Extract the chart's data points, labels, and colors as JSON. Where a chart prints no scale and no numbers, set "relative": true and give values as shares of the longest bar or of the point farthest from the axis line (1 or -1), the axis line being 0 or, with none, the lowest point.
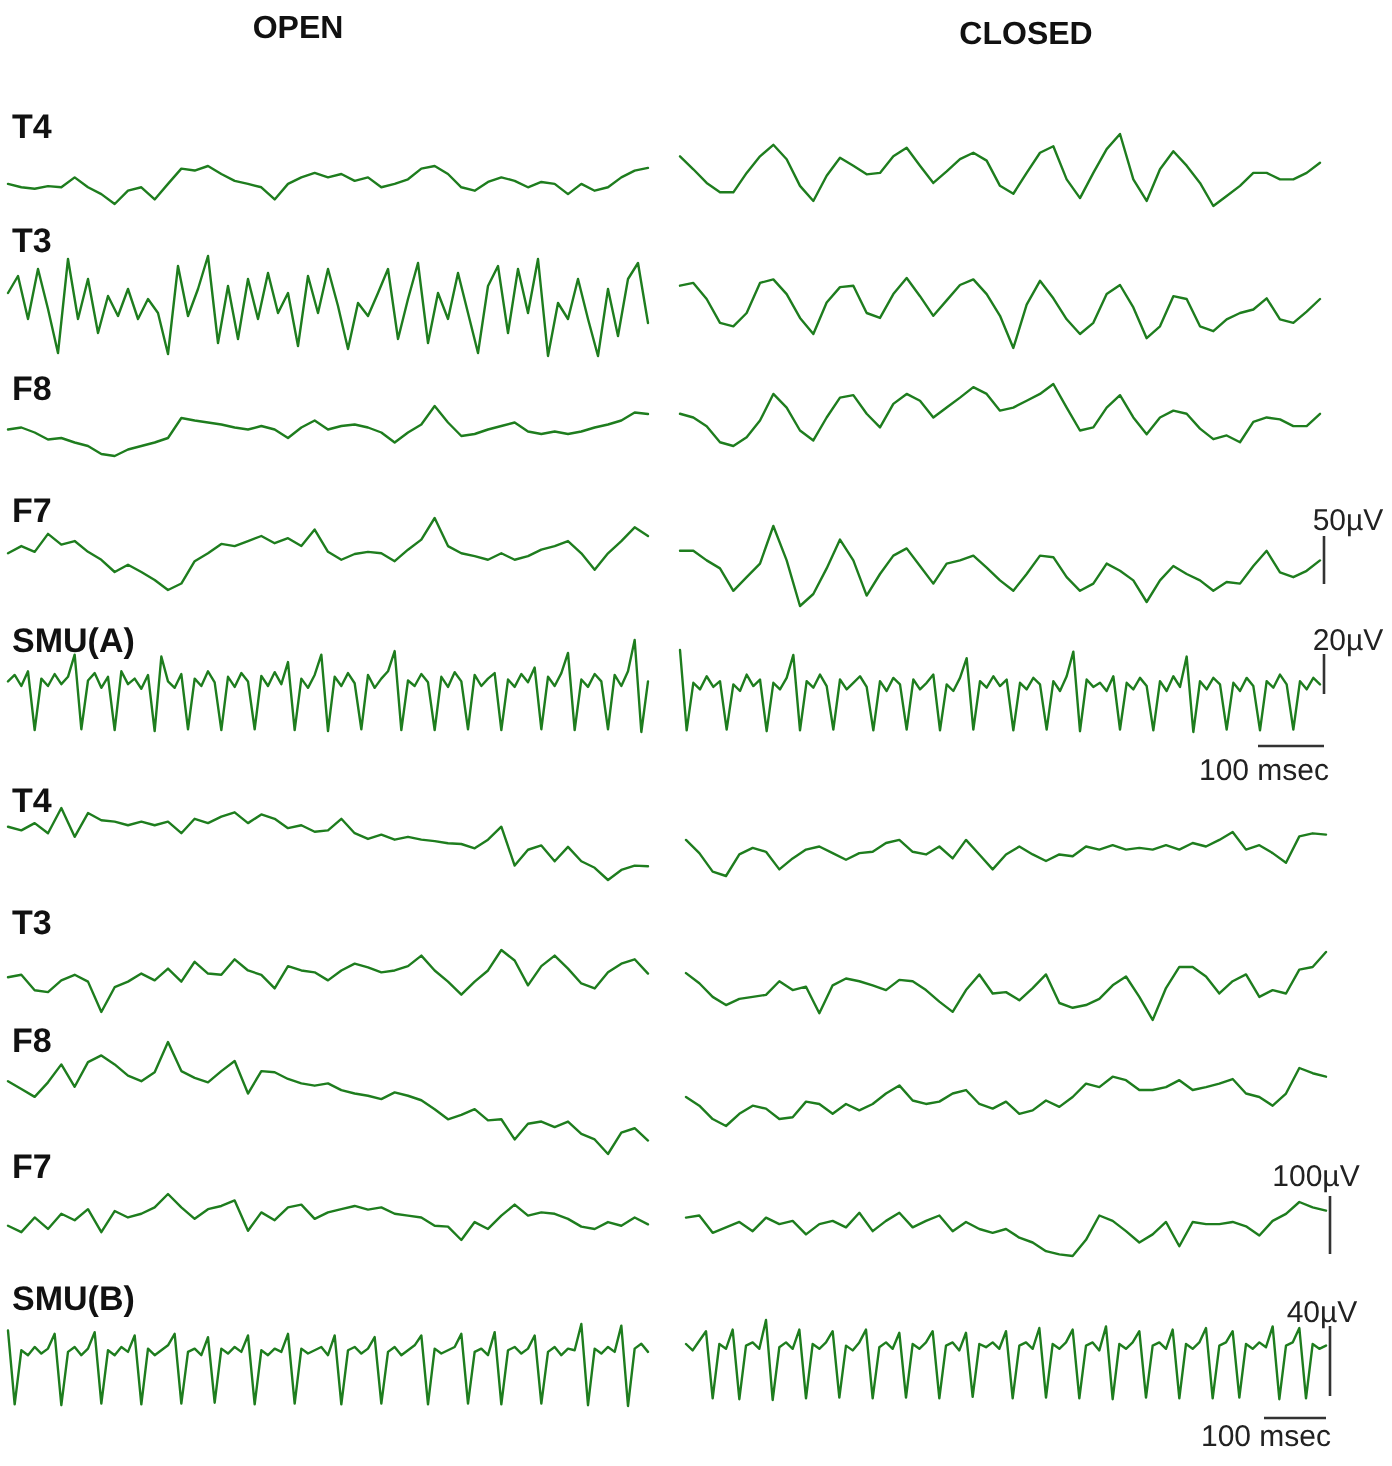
{
  "chart_data": [
    {
      "type": "line",
      "relative": true,
      "title": "OPEN",
      "ylabel": "T4",
      "color": "#1e7d1e",
      "categories": [
        null,
        null,
        null,
        null,
        null,
        null,
        null,
        null,
        null,
        null,
        null,
        null,
        null,
        null,
        null,
        null,
        null,
        null,
        null,
        null,
        null,
        null,
        null,
        null,
        null,
        null,
        null,
        null,
        null,
        null,
        null,
        null,
        null,
        null,
        null,
        null,
        null,
        null,
        null,
        null,
        null,
        null,
        null,
        null,
        null,
        null,
        null,
        null,
        null
      ],
      "values": [
        0.53,
        0.44,
        0.4,
        0.47,
        0.44,
        0.7,
        0.44,
        0.26,
        0,
        0.35,
        0.44,
        0.12,
        0.53,
        0.93,
        0.88,
        1.0,
        0.79,
        0.61,
        0.53,
        0.44,
        0.12,
        0.53,
        0.7,
        0.82,
        0.7,
        0.79,
        0.61,
        0.7,
        0.44,
        0.53,
        0.65,
        0.93,
        1.0,
        0.79,
        0.44,
        0.35,
        0.58,
        0.7,
        0.61,
        0.44,
        0.58,
        0.53,
        0.26,
        0.53,
        0.35,
        0.44,
        0.7,
        0.88,
        0.95
      ]
    },
    {
      "type": "line",
      "relative": true,
      "title": "CLOSED",
      "color": "#1e7d1e",
      "categories": [
        null,
        null,
        null,
        null,
        null,
        null,
        null,
        null,
        null,
        null,
        null,
        null,
        null,
        null,
        null,
        null,
        null,
        null,
        null,
        null,
        null,
        null,
        null,
        null,
        null,
        null,
        null,
        null,
        null,
        null,
        null,
        null,
        null,
        null,
        null,
        null,
        null,
        null,
        null,
        null,
        null,
        null,
        null,
        null,
        null,
        null,
        null,
        null,
        null
      ],
      "values": [
        0.69,
        0.51,
        0.32,
        0.19,
        0.19,
        0.46,
        0.69,
        0.85,
        0.65,
        0.28,
        0.07,
        0.42,
        0.67,
        0.56,
        0.44,
        0.46,
        0.69,
        0.81,
        0.56,
        0.32,
        0.48,
        0.65,
        0.74,
        0.63,
        0.28,
        0.17,
        0.46,
        0.74,
        0.83,
        0.37,
        0.11,
        0.46,
        0.79,
        1.0,
        0.37,
        0.07,
        0.51,
        0.76,
        0.56,
        0.32,
        0,
        0.14,
        0.28,
        0.46,
        0.46,
        0.37,
        0.37,
        0.46,
        0.6
      ]
    },
    {
      "type": "line",
      "relative": true,
      "ylabel": "T3",
      "color": "#1e7d1e",
      "categories": [
        null,
        null,
        null,
        null,
        null,
        null,
        null,
        null,
        null,
        null,
        null,
        null,
        null,
        null,
        null,
        null,
        null,
        null,
        null,
        null,
        null,
        null,
        null,
        null,
        null,
        null,
        null,
        null,
        null,
        null,
        null,
        null,
        null,
        null,
        null,
        null,
        null,
        null,
        null,
        null,
        null,
        null,
        null,
        null,
        null,
        null,
        null,
        null,
        null,
        null,
        null,
        null,
        null,
        null,
        null,
        null,
        null,
        null,
        null,
        null,
        null,
        null,
        null,
        null,
        null
      ],
      "values": [
        0.63,
        0.8,
        0.37,
        0.87,
        0.47,
        0.03,
        0.97,
        0.37,
        0.77,
        0.23,
        0.6,
        0.4,
        0.67,
        0.37,
        0.57,
        0.43,
        0.02,
        0.9,
        0.4,
        0.67,
        1.0,
        0.13,
        0.7,
        0.17,
        0.77,
        0.37,
        0.83,
        0.43,
        0.63,
        0.1,
        0.8,
        0.43,
        0.87,
        0.5,
        0.07,
        0.53,
        0.4,
        0.63,
        0.87,
        0.17,
        0.57,
        0.93,
        0.13,
        0.63,
        0.37,
        0.83,
        0.43,
        0.03,
        0.7,
        0.9,
        0.23,
        0.87,
        0.43,
        0.97,
        0,
        0.53,
        0.37,
        0.77,
        0.37,
        0,
        0.67,
        0.2,
        0.77,
        0.93,
        0.33
      ]
    },
    {
      "type": "line",
      "relative": true,
      "color": "#1e7d1e",
      "categories": [
        null,
        null,
        null,
        null,
        null,
        null,
        null,
        null,
        null,
        null,
        null,
        null,
        null,
        null,
        null,
        null,
        null,
        null,
        null,
        null,
        null,
        null,
        null,
        null,
        null,
        null,
        null,
        null,
        null,
        null,
        null,
        null,
        null,
        null,
        null,
        null,
        null,
        null,
        null,
        null,
        null,
        null,
        null,
        null,
        null,
        null,
        null,
        null,
        null
      ],
      "values": [
        0.89,
        0.93,
        0.7,
        0.36,
        0.31,
        0.5,
        0.93,
        0.98,
        0.77,
        0.43,
        0.2,
        0.65,
        0.87,
        0.89,
        0.5,
        0.43,
        0.77,
        1.0,
        0.74,
        0.46,
        0.68,
        0.9,
        0.98,
        0.77,
        0.46,
        0,
        0.62,
        0.96,
        0.71,
        0.41,
        0.2,
        0.36,
        0.77,
        0.9,
        0.58,
        0.14,
        0.31,
        0.74,
        0.7,
        0.31,
        0.24,
        0.41,
        0.5,
        0.55,
        0.71,
        0.41,
        0.36,
        0.52,
        0.7
      ]
    },
    {
      "type": "line",
      "relative": true,
      "ylabel": "F8",
      "color": "#1e7d1e",
      "categories": [
        null,
        null,
        null,
        null,
        null,
        null,
        null,
        null,
        null,
        null,
        null,
        null,
        null,
        null,
        null,
        null,
        null,
        null,
        null,
        null,
        null,
        null,
        null,
        null,
        null,
        null,
        null,
        null,
        null,
        null,
        null,
        null,
        null,
        null,
        null,
        null,
        null,
        null,
        null,
        null,
        null,
        null,
        null,
        null,
        null,
        null,
        null,
        null,
        null
      ],
      "values": [
        0.53,
        0.57,
        0.47,
        0.33,
        0.36,
        0.27,
        0.2,
        0.04,
        0,
        0.13,
        0.2,
        0.27,
        0.36,
        0.76,
        0.71,
        0.67,
        0.63,
        0.57,
        0.53,
        0.6,
        0.53,
        0.36,
        0.57,
        0.71,
        0.53,
        0.6,
        0.63,
        0.57,
        0.47,
        0.27,
        0.47,
        0.63,
        1.0,
        0.67,
        0.4,
        0.44,
        0.53,
        0.6,
        0.67,
        0.49,
        0.44,
        0.49,
        0.44,
        0.49,
        0.57,
        0.63,
        0.71,
        0.87,
        0.84
      ]
    },
    {
      "type": "line",
      "relative": true,
      "color": "#1e7d1e",
      "categories": [
        null,
        null,
        null,
        null,
        null,
        null,
        null,
        null,
        null,
        null,
        null,
        null,
        null,
        null,
        null,
        null,
        null,
        null,
        null,
        null,
        null,
        null,
        null,
        null,
        null,
        null,
        null,
        null,
        null,
        null,
        null,
        null,
        null,
        null,
        null,
        null,
        null,
        null,
        null,
        null,
        null,
        null,
        null,
        null,
        null,
        null,
        null,
        null,
        null
      ],
      "values": [
        0.52,
        0.46,
        0.32,
        0.06,
        0,
        0.14,
        0.41,
        0.84,
        0.62,
        0.25,
        0.09,
        0.46,
        0.78,
        0.82,
        0.52,
        0.3,
        0.68,
        0.84,
        0.73,
        0.46,
        0.62,
        0.78,
        0.95,
        0.84,
        0.57,
        0.62,
        0.73,
        0.84,
        1.0,
        0.62,
        0.25,
        0.3,
        0.62,
        0.82,
        0.46,
        0.19,
        0.46,
        0.57,
        0.52,
        0.28,
        0.11,
        0.17,
        0.06,
        0.39,
        0.46,
        0.43,
        0.32,
        0.32,
        0.52
      ]
    },
    {
      "type": "line",
      "relative": true,
      "ylabel": "F7",
      "color": "#1e7d1e",
      "categories": [
        null,
        null,
        null,
        null,
        null,
        null,
        null,
        null,
        null,
        null,
        null,
        null,
        null,
        null,
        null,
        null,
        null,
        null,
        null,
        null,
        null,
        null,
        null,
        null,
        null,
        null,
        null,
        null,
        null,
        null,
        null,
        null,
        null,
        null,
        null,
        null,
        null,
        null,
        null,
        null,
        null,
        null,
        null,
        null,
        null,
        null,
        null,
        null,
        null
      ],
      "values": [
        0.51,
        0.61,
        0.53,
        0.78,
        0.63,
        0.68,
        0.53,
        0.42,
        0.25,
        0.35,
        0.25,
        0.14,
        0,
        0.09,
        0.4,
        0.51,
        0.64,
        0.61,
        0.68,
        0.75,
        0.65,
        0.72,
        0.61,
        0.84,
        0.53,
        0.42,
        0.5,
        0.53,
        0.51,
        0.4,
        0.56,
        0.7,
        1.0,
        0.61,
        0.51,
        0.47,
        0.42,
        0.51,
        0.42,
        0.47,
        0.56,
        0.61,
        0.68,
        0.51,
        0.28,
        0.51,
        0.68,
        0.87,
        0.75
      ]
    },
    {
      "type": "line",
      "relative": true,
      "color": "#1e7d1e",
      "annotations": [
        "50µV"
      ],
      "categories": [
        null,
        null,
        null,
        null,
        null,
        null,
        null,
        null,
        null,
        null,
        null,
        null,
        null,
        null,
        null,
        null,
        null,
        null,
        null,
        null,
        null,
        null,
        null,
        null,
        null,
        null,
        null,
        null,
        null,
        null,
        null,
        null,
        null,
        null,
        null,
        null,
        null,
        null,
        null,
        null,
        null,
        null,
        null,
        null,
        null,
        null,
        null,
        null,
        null
      ],
      "values": [
        0.69,
        0.69,
        0.57,
        0.47,
        0.19,
        0.36,
        0.53,
        1.0,
        0.57,
        0,
        0.15,
        0.47,
        0.83,
        0.57,
        0.13,
        0.4,
        0.63,
        0.72,
        0.5,
        0.28,
        0.53,
        0.57,
        0.63,
        0.48,
        0.32,
        0.19,
        0.4,
        0.63,
        0.61,
        0.36,
        0.19,
        0.28,
        0.53,
        0.44,
        0.32,
        0.05,
        0.32,
        0.5,
        0.4,
        0.32,
        0.19,
        0.3,
        0.28,
        0.5,
        0.69,
        0.42,
        0.36,
        0.44,
        0.57
      ]
    },
    {
      "type": "line",
      "relative": true,
      "ylabel": "SMU(A)",
      "color": "#1e7d1e",
      "categories": [
        null,
        null,
        null,
        null,
        null,
        null,
        null,
        null,
        null,
        null,
        null,
        null,
        null,
        null,
        null,
        null,
        null,
        null,
        null,
        null,
        null,
        null,
        null,
        null,
        null,
        null,
        null,
        null,
        null,
        null,
        null,
        null,
        null,
        null,
        null,
        null,
        null,
        null,
        null,
        null,
        null,
        null,
        null,
        null,
        null,
        null,
        null,
        null,
        null,
        null,
        null,
        null,
        null,
        null,
        null,
        null,
        null,
        null,
        null,
        null,
        null,
        null,
        null,
        null,
        null,
        null,
        null,
        null,
        null,
        null,
        null,
        null,
        null,
        null,
        null,
        null,
        null,
        null,
        null,
        null,
        null,
        null,
        null,
        null,
        null,
        null,
        null,
        null,
        null,
        null,
        null,
        null,
        null,
        null,
        null,
        null,
        null
      ],
      "values": [
        0.55,
        0.62,
        0.5,
        0.66,
        0.02,
        0.58,
        0.5,
        0.63,
        0.52,
        0.6,
        0.84,
        0.03,
        0.56,
        0.64,
        0.48,
        0.6,
        0.02,
        0.66,
        0.52,
        0.58,
        0.47,
        0.62,
        0.01,
        0.82,
        0.55,
        0.48,
        0.63,
        0.03,
        0.58,
        0.5,
        0.66,
        0.54,
        0.02,
        0.6,
        0.49,
        0.64,
        0.55,
        0.03,
        0.61,
        0.5,
        0.65,
        0.52,
        0.76,
        0.02,
        0.58,
        0.48,
        0.62,
        0.84,
        0.01,
        0.6,
        0.5,
        0.64,
        0.53,
        0.03,
        0.62,
        0.48,
        0.58,
        0.66,
        0.88,
        0.02,
        0.56,
        0.5,
        0.63,
        0.54,
        0.02,
        0.6,
        0.49,
        0.65,
        0.55,
        0.03,
        0.62,
        0.5,
        0.58,
        0.64,
        0.02,
        0.57,
        0.49,
        0.63,
        0.54,
        0.7,
        0.03,
        0.6,
        0.5,
        0.64,
        0.86,
        0.02,
        0.57,
        0.49,
        0.63,
        0.55,
        0.03,
        0.62,
        0.5,
        0.66,
        1.0,
        0,
        0.55
      ]
    },
    {
      "type": "line",
      "relative": true,
      "color": "#1e7d1e",
      "annotations": [
        "20µV",
        "100 msec"
      ],
      "categories": [
        null,
        null,
        null,
        null,
        null,
        null,
        null,
        null,
        null,
        null,
        null,
        null,
        null,
        null,
        null,
        null,
        null,
        null,
        null,
        null,
        null,
        null,
        null,
        null,
        null,
        null,
        null,
        null,
        null,
        null,
        null,
        null,
        null,
        null,
        null,
        null,
        null,
        null,
        null,
        null,
        null,
        null,
        null,
        null,
        null,
        null,
        null,
        null,
        null,
        null,
        null,
        null,
        null,
        null,
        null,
        null,
        null,
        null,
        null,
        null,
        null,
        null,
        null,
        null,
        null,
        null,
        null,
        null,
        null,
        null,
        null,
        null,
        null,
        null,
        null,
        null,
        null,
        null,
        null,
        null,
        null,
        null,
        null,
        null,
        null,
        null,
        null,
        null,
        null,
        null,
        null,
        null,
        null,
        null,
        null,
        null,
        null
      ],
      "values": [
        1.0,
        0.02,
        0.6,
        0.52,
        0.68,
        0.55,
        0.62,
        0.03,
        0.58,
        0.5,
        0.7,
        0.56,
        0.64,
        0.01,
        0.6,
        0.52,
        0.66,
        0.94,
        0.02,
        0.62,
        0.54,
        0.7,
        0.56,
        0.03,
        0.64,
        0.52,
        0.6,
        0.68,
        0.55,
        0.02,
        0.62,
        0.5,
        0.66,
        0.58,
        0.03,
        0.64,
        0.52,
        0.6,
        0.7,
        0.02,
        0.58,
        0.5,
        0.66,
        0.9,
        0.03,
        0.62,
        0.54,
        0.68,
        0.56,
        0.64,
        0.02,
        0.6,
        0.52,
        0.66,
        0.58,
        0.03,
        0.62,
        0.5,
        0.68,
        0.98,
        0.01,
        0.64,
        0.55,
        0.6,
        0.5,
        0.68,
        0.03,
        0.6,
        0.52,
        0.66,
        0.56,
        0.02,
        0.62,
        0.5,
        0.68,
        0.55,
        0.92,
        0,
        0.62,
        0.52,
        0.66,
        0.58,
        0.03,
        0.6,
        0.5,
        0.66,
        0.56,
        0.02,
        0.62,
        0.54,
        0.7,
        0.58,
        0.03,
        0.62,
        0.52,
        0.66,
        0.58
      ]
    },
    {
      "type": "line",
      "relative": true,
      "ylabel": "T4",
      "color": "#1e7d1e",
      "categories": [
        null,
        null,
        null,
        null,
        null,
        null,
        null,
        null,
        null,
        null,
        null,
        null,
        null,
        null,
        null,
        null,
        null,
        null,
        null,
        null,
        null,
        null,
        null,
        null,
        null,
        null,
        null,
        null,
        null,
        null,
        null,
        null,
        null,
        null,
        null,
        null,
        null,
        null,
        null,
        null,
        null,
        null,
        null,
        null,
        null,
        null,
        null,
        null,
        null
      ],
      "values": [
        0.74,
        0.69,
        0.79,
        0.65,
        1.0,
        0.6,
        0.93,
        0.83,
        0.81,
        0.76,
        0.81,
        0.76,
        0.81,
        0.65,
        0.85,
        0.79,
        0.88,
        0.94,
        0.79,
        0.91,
        0.85,
        0.72,
        0.76,
        0.67,
        0.69,
        0.85,
        0.65,
        0.57,
        0.63,
        0.56,
        0.6,
        0.56,
        0.54,
        0.51,
        0.5,
        0.44,
        0.56,
        0.74,
        0.2,
        0.42,
        0.48,
        0.26,
        0.46,
        0.26,
        0.17,
        0,
        0.14,
        0.2,
        0.19
      ]
    },
    {
      "type": "line",
      "relative": true,
      "color": "#1e7d1e",
      "categories": [
        null,
        null,
        null,
        null,
        null,
        null,
        null,
        null,
        null,
        null,
        null,
        null,
        null,
        null,
        null,
        null,
        null,
        null,
        null,
        null,
        null,
        null,
        null,
        null,
        null,
        null,
        null,
        null,
        null,
        null,
        null,
        null,
        null,
        null,
        null,
        null,
        null,
        null,
        null,
        null,
        null,
        null,
        null,
        null,
        null,
        null,
        null,
        null,
        null
      ],
      "values": [
        0.82,
        0.52,
        0.1,
        0,
        0.49,
        0.64,
        0.55,
        0.15,
        0.4,
        0.6,
        0.67,
        0.52,
        0.37,
        0.52,
        0.55,
        0.75,
        0.82,
        0.55,
        0.49,
        0.67,
        0.4,
        0.82,
        0.49,
        0.15,
        0.49,
        0.67,
        0.49,
        0.34,
        0.49,
        0.45,
        0.67,
        0.6,
        0.7,
        0.6,
        0.64,
        0.6,
        0.7,
        0.6,
        0.75,
        0.67,
        0.82,
        1.0,
        0.6,
        0.7,
        0.52,
        0.3,
        0.9,
        0.97,
        0.94
      ]
    },
    {
      "type": "line",
      "relative": true,
      "ylabel": "T3",
      "color": "#1e7d1e",
      "categories": [
        null,
        null,
        null,
        null,
        null,
        null,
        null,
        null,
        null,
        null,
        null,
        null,
        null,
        null,
        null,
        null,
        null,
        null,
        null,
        null,
        null,
        null,
        null,
        null,
        null,
        null,
        null,
        null,
        null,
        null,
        null,
        null,
        null,
        null,
        null,
        null,
        null,
        null,
        null,
        null,
        null,
        null,
        null,
        null,
        null,
        null,
        null,
        null,
        null
      ],
      "values": [
        0.56,
        0.6,
        0.35,
        0.32,
        0.51,
        0.6,
        0.49,
        0,
        0.4,
        0.49,
        0.62,
        0.51,
        0.7,
        0.49,
        0.81,
        0.62,
        0.6,
        0.85,
        0.67,
        0.6,
        0.38,
        0.74,
        0.67,
        0.64,
        0.51,
        0.67,
        0.78,
        0.72,
        0.64,
        0.67,
        0.74,
        0.91,
        0.67,
        0.49,
        0.28,
        0.49,
        0.67,
        1.0,
        0.83,
        0.43,
        0.74,
        0.91,
        0.7,
        0.46,
        0.38,
        0.64,
        0.78,
        0.85,
        0.62
      ]
    },
    {
      "type": "line",
      "relative": true,
      "color": "#1e7d1e",
      "categories": [
        null,
        null,
        null,
        null,
        null,
        null,
        null,
        null,
        null,
        null,
        null,
        null,
        null,
        null,
        null,
        null,
        null,
        null,
        null,
        null,
        null,
        null,
        null,
        null,
        null,
        null,
        null,
        null,
        null,
        null,
        null,
        null,
        null,
        null,
        null,
        null,
        null,
        null,
        null,
        null,
        null,
        null,
        null,
        null,
        null,
        null,
        null,
        null,
        null
      ],
      "values": [
        0.69,
        0.54,
        0.34,
        0.22,
        0.31,
        0.34,
        0.37,
        0.57,
        0.44,
        0.49,
        0.1,
        0.51,
        0.61,
        0.57,
        0.51,
        0.44,
        0.59,
        0.57,
        0.44,
        0.27,
        0.12,
        0.44,
        0.67,
        0.39,
        0.41,
        0.29,
        0.47,
        0.67,
        0.25,
        0.18,
        0.22,
        0.31,
        0.51,
        0.64,
        0.34,
        0,
        0.47,
        0.78,
        0.78,
        0.64,
        0.39,
        0.57,
        0.67,
        0.34,
        0.44,
        0.39,
        0.74,
        0.78,
        1.0
      ]
    },
    {
      "type": "line",
      "relative": true,
      "ylabel": "F8",
      "color": "#1e7d1e",
      "categories": [
        null,
        null,
        null,
        null,
        null,
        null,
        null,
        null,
        null,
        null,
        null,
        null,
        null,
        null,
        null,
        null,
        null,
        null,
        null,
        null,
        null,
        null,
        null,
        null,
        null,
        null,
        null,
        null,
        null,
        null,
        null,
        null,
        null,
        null,
        null,
        null,
        null,
        null,
        null,
        null,
        null,
        null,
        null,
        null,
        null,
        null,
        null,
        null,
        null
      ],
      "values": [
        0.65,
        0.58,
        0.51,
        0.64,
        0.8,
        0.6,
        0.82,
        0.88,
        0.8,
        0.7,
        0.65,
        0.73,
        1.0,
        0.74,
        0.68,
        0.64,
        0.74,
        0.83,
        0.54,
        0.74,
        0.73,
        0.67,
        0.63,
        0.61,
        0.63,
        0.57,
        0.54,
        0.52,
        0.49,
        0.55,
        0.52,
        0.48,
        0.4,
        0.31,
        0.35,
        0.4,
        0.3,
        0.31,
        0.13,
        0.27,
        0.29,
        0.24,
        0.29,
        0.18,
        0.13,
        0,
        0.19,
        0.23,
        0.12
      ]
    },
    {
      "type": "line",
      "relative": true,
      "color": "#1e7d1e",
      "categories": [
        null,
        null,
        null,
        null,
        null,
        null,
        null,
        null,
        null,
        null,
        null,
        null,
        null,
        null,
        null,
        null,
        null,
        null,
        null,
        null,
        null,
        null,
        null,
        null,
        null,
        null,
        null,
        null,
        null,
        null,
        null,
        null,
        null,
        null,
        null,
        null,
        null,
        null,
        null,
        null,
        null,
        null,
        null,
        null,
        null,
        null,
        null,
        null,
        null
      ],
      "values": [
        0.5,
        0.35,
        0.12,
        0,
        0.21,
        0.35,
        0.3,
        0.12,
        0.15,
        0.42,
        0.38,
        0.21,
        0.38,
        0.27,
        0.38,
        0.56,
        0.7,
        0.44,
        0.38,
        0.42,
        0.56,
        0.62,
        0.38,
        0.3,
        0.42,
        0.21,
        0.27,
        0.44,
        0.33,
        0.5,
        0.73,
        0.67,
        0.85,
        0.79,
        0.62,
        0.62,
        0.67,
        0.79,
        0.62,
        0.67,
        0.73,
        0.81,
        0.56,
        0.5,
        0.35,
        0.56,
        1.0,
        0.91,
        0.85
      ]
    },
    {
      "type": "line",
      "relative": true,
      "ylabel": "F7",
      "color": "#1e7d1e",
      "categories": [
        null,
        null,
        null,
        null,
        null,
        null,
        null,
        null,
        null,
        null,
        null,
        null,
        null,
        null,
        null,
        null,
        null,
        null,
        null,
        null,
        null,
        null,
        null,
        null,
        null,
        null,
        null,
        null,
        null,
        null,
        null,
        null,
        null,
        null,
        null,
        null,
        null,
        null,
        null,
        null,
        null,
        null,
        null,
        null,
        null,
        null,
        null,
        null,
        null
      ],
      "values": [
        0.31,
        0.17,
        0.49,
        0.24,
        0.57,
        0.43,
        0.67,
        0.17,
        0.63,
        0.49,
        0.57,
        0.71,
        1.0,
        0.71,
        0.46,
        0.67,
        0.74,
        0.86,
        0.2,
        0.6,
        0.43,
        0.71,
        0.77,
        0.46,
        0.6,
        0.67,
        0.74,
        0.66,
        0.71,
        0.57,
        0.53,
        0.49,
        0.31,
        0.29,
        0,
        0.39,
        0.24,
        0.53,
        0.77,
        0.53,
        0.6,
        0.57,
        0.46,
        0.29,
        0.24,
        0.39,
        0.31,
        0.49,
        0.34
      ]
    },
    {
      "type": "line",
      "relative": true,
      "color": "#1e7d1e",
      "annotations": [
        "100µV"
      ],
      "categories": [
        null,
        null,
        null,
        null,
        null,
        null,
        null,
        null,
        null,
        null,
        null,
        null,
        null,
        null,
        null,
        null,
        null,
        null,
        null,
        null,
        null,
        null,
        null,
        null,
        null,
        null,
        null,
        null,
        null,
        null,
        null,
        null,
        null,
        null,
        null,
        null,
        null,
        null,
        null,
        null,
        null,
        null,
        null,
        null,
        null,
        null,
        null,
        null,
        null
      ],
      "values": [
        0.71,
        0.75,
        0.43,
        0.53,
        0.63,
        0.46,
        0.71,
        0.59,
        0.65,
        0.4,
        0.59,
        0.65,
        0.53,
        0.8,
        0.46,
        0.65,
        0.8,
        0.53,
        0.65,
        0.75,
        0.46,
        0.63,
        0.5,
        0.43,
        0.5,
        0.34,
        0.25,
        0.09,
        0.03,
        0,
        0.3,
        0.75,
        0.65,
        0.46,
        0.25,
        0.4,
        0.63,
        0.18,
        0.63,
        0.59,
        0.59,
        0.63,
        0.55,
        0.38,
        0.65,
        0.78,
        1.0,
        0.9,
        0.84
      ]
    },
    {
      "type": "line",
      "relative": true,
      "ylabel": "SMU(B)",
      "color": "#1e7d1e",
      "categories": [
        null,
        null,
        null,
        null,
        null,
        null,
        null,
        null,
        null,
        null,
        null,
        null,
        null,
        null,
        null,
        null,
        null,
        null,
        null,
        null,
        null,
        null,
        null,
        null,
        null,
        null,
        null,
        null,
        null,
        null,
        null,
        null,
        null,
        null,
        null,
        null,
        null,
        null,
        null,
        null,
        null,
        null,
        null,
        null,
        null,
        null,
        null,
        null,
        null,
        null,
        null,
        null,
        null,
        null,
        null,
        null,
        null,
        null,
        null,
        null,
        null,
        null,
        null,
        null,
        null,
        null,
        null,
        null,
        null,
        null,
        null,
        null,
        null,
        null,
        null,
        null,
        null,
        null,
        null,
        null,
        null,
        null,
        null,
        null,
        null,
        null,
        null,
        null,
        null,
        null,
        null,
        null,
        null,
        null,
        null,
        null,
        null
      ],
      "values": [
        0.92,
        0.02,
        0.68,
        0.62,
        0.72,
        0.64,
        0.7,
        0.88,
        0.01,
        0.66,
        0.72,
        0.62,
        0.7,
        0.9,
        0.03,
        0.68,
        0.62,
        0.72,
        0.66,
        0.86,
        0.02,
        0.7,
        0.62,
        0.68,
        0.74,
        0.88,
        0.03,
        0.66,
        0.7,
        0.62,
        0.84,
        0.04,
        0.7,
        0.64,
        0.72,
        0.66,
        0.86,
        0.02,
        0.68,
        0.62,
        0.7,
        0.66,
        0.88,
        0.03,
        0.7,
        0.64,
        0.68,
        0.72,
        0.62,
        0.86,
        0.02,
        0.68,
        0.72,
        0.64,
        0.7,
        0.84,
        0.03,
        0.66,
        0.72,
        0.62,
        0.68,
        0.74,
        0.86,
        0.02,
        0.7,
        0.64,
        0.68,
        0.72,
        0.88,
        0.03,
        0.66,
        0.7,
        0.62,
        0.9,
        0.02,
        0.68,
        0.72,
        0.64,
        0.7,
        0.86,
        0.03,
        0.66,
        0.72,
        0.62,
        0.7,
        0.68,
        1.0,
        0.01,
        0.7,
        0.64,
        0.72,
        0.66,
        0.98,
        0,
        0.7,
        0.76,
        0.66
      ]
    },
    {
      "type": "line",
      "relative": true,
      "color": "#1e7d1e",
      "annotations": [
        "40µV",
        "100 msec"
      ],
      "categories": [
        null,
        null,
        null,
        null,
        null,
        null,
        null,
        null,
        null,
        null,
        null,
        null,
        null,
        null,
        null,
        null,
        null,
        null,
        null,
        null,
        null,
        null,
        null,
        null,
        null,
        null,
        null,
        null,
        null,
        null,
        null,
        null,
        null,
        null,
        null,
        null,
        null,
        null,
        null,
        null,
        null,
        null,
        null,
        null,
        null,
        null,
        null,
        null,
        null,
        null,
        null,
        null,
        null,
        null,
        null,
        null,
        null,
        null,
        null,
        null,
        null,
        null,
        null,
        null,
        null,
        null,
        null,
        null,
        null,
        null,
        null,
        null,
        null,
        null,
        null,
        null,
        null,
        null,
        null,
        null,
        null,
        null,
        null,
        null,
        null,
        null,
        null,
        null,
        null,
        null,
        null,
        null,
        null,
        null,
        null,
        null,
        null
      ],
      "values": [
        0.7,
        0.62,
        0.74,
        0.86,
        0.02,
        0.7,
        0.64,
        0.88,
        0.01,
        0.68,
        0.72,
        0.64,
        1.0,
        0,
        0.66,
        0.72,
        0.64,
        0.88,
        0.02,
        0.7,
        0.64,
        0.72,
        0.86,
        0.03,
        0.68,
        0.62,
        0.72,
        0.88,
        0.02,
        0.66,
        0.72,
        0.64,
        0.84,
        0.03,
        0.7,
        0.64,
        0.72,
        0.86,
        0.02,
        0.68,
        0.72,
        0.62,
        0.84,
        0.04,
        0.7,
        0.66,
        0.72,
        0.64,
        0.86,
        0.02,
        0.68,
        0.72,
        0.64,
        0.9,
        0.03,
        0.7,
        0.64,
        0.72,
        0.88,
        0.02,
        0.68,
        0.72,
        0.62,
        0.92,
        0.01,
        0.7,
        0.64,
        0.72,
        0.86,
        0.03,
        0.68,
        0.72,
        0.64,
        0.88,
        0.02,
        0.7,
        0.64,
        0.72,
        0.9,
        0.02,
        0.68,
        0.72,
        0.86,
        0.03,
        0.7,
        0.64,
        0.72,
        0.66,
        0.92,
        0.01,
        0.68,
        0.72,
        0.9,
        0.02,
        0.7,
        0.64,
        0.68
      ]
    }
  ]
}
